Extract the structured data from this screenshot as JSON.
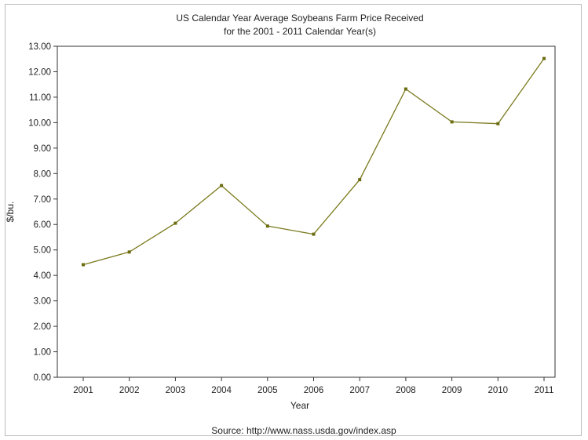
{
  "colors": {
    "series": "#7a7a1e",
    "marker": "#6b6b10",
    "axis": "#333333",
    "frame": "#bdbdbd"
  },
  "chart_data": {
    "type": "line",
    "title": "US Calendar Year Average Soybeans Farm Price Received",
    "subtitle": "for the 2001 - 2011 Calendar Year(s)",
    "xlabel": "Year",
    "ylabel": "$/bu.",
    "source": "Source: http://www.nass.usda.gov/index.asp",
    "ylim": [
      0,
      13
    ],
    "y_ticks": [
      "0.00",
      "1.00",
      "2.00",
      "3.00",
      "4.00",
      "5.00",
      "6.00",
      "7.00",
      "8.00",
      "9.00",
      "10.00",
      "11.00",
      "12.00",
      "13.00"
    ],
    "categories": [
      "2001",
      "2002",
      "2003",
      "2004",
      "2005",
      "2006",
      "2007",
      "2008",
      "2009",
      "2010",
      "2011"
    ],
    "series": [
      {
        "values": [
          4.42,
          4.92,
          6.05,
          7.53,
          5.94,
          5.62,
          7.76,
          11.32,
          10.03,
          9.96,
          12.52
        ]
      }
    ],
    "grid": false,
    "legend": "none"
  }
}
